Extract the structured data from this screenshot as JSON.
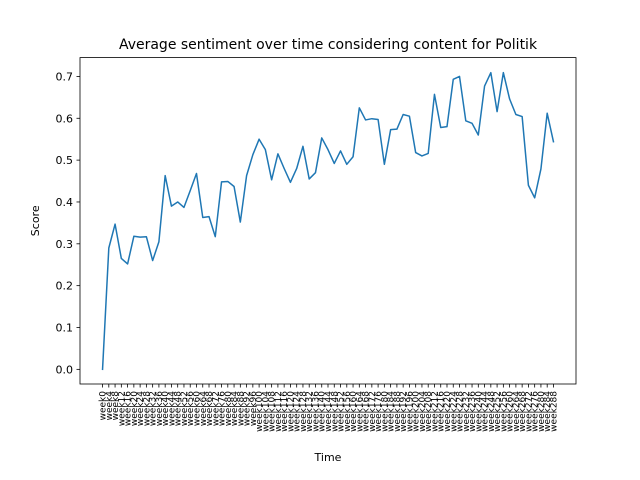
{
  "chart_data": {
    "type": "line",
    "title": "Average sentiment over time considering content for Politik",
    "xlabel": "Time",
    "ylabel": "Score",
    "ylim": [
      -0.035,
      0.745
    ],
    "yticks": [
      0.0,
      0.1,
      0.2,
      0.3,
      0.4,
      0.5,
      0.6,
      0.7
    ],
    "ytick_labels": [
      "0.0",
      "0.1",
      "0.2",
      "0.3",
      "0.4",
      "0.5",
      "0.6",
      "0.7"
    ],
    "color": "#1f77b4",
    "grid": false,
    "categories": [
      "week0",
      "week4",
      "week8",
      "week12",
      "week16",
      "week20",
      "week24",
      "week28",
      "week32",
      "week36",
      "week40",
      "week44",
      "week48",
      "week52",
      "week56",
      "week60",
      "week64",
      "week68",
      "week72",
      "week76",
      "week80",
      "week84",
      "week88",
      "week92",
      "week96",
      "week100",
      "week104",
      "week108",
      "week112",
      "week116",
      "week120",
      "week124",
      "week128",
      "week132",
      "week136",
      "week140",
      "week144",
      "week148",
      "week152",
      "week156",
      "week160",
      "week164",
      "week168",
      "week172",
      "week176",
      "week180",
      "week184",
      "week188",
      "week192",
      "week196",
      "week200",
      "week204",
      "week208",
      "week212",
      "week216",
      "week220",
      "week224",
      "week228",
      "week232",
      "week236",
      "week240",
      "week244",
      "week248",
      "week252",
      "week256",
      "week260",
      "week264",
      "week268",
      "week272",
      "week276",
      "week280",
      "week284",
      "week288"
    ],
    "values": [
      0.0,
      0.29,
      0.347,
      0.265,
      0.252,
      0.318,
      0.316,
      0.317,
      0.26,
      0.305,
      0.463,
      0.39,
      0.4,
      0.387,
      0.427,
      0.468,
      0.363,
      0.365,
      0.317,
      0.448,
      0.449,
      0.437,
      0.352,
      0.463,
      0.513,
      0.55,
      0.525,
      0.453,
      0.515,
      0.48,
      0.447,
      0.48,
      0.533,
      0.455,
      0.47,
      0.553,
      0.525,
      0.492,
      0.522,
      0.49,
      0.508,
      0.625,
      0.596,
      0.599,
      0.597,
      0.49,
      0.573,
      0.574,
      0.609,
      0.605,
      0.518,
      0.51,
      0.516,
      0.657,
      0.578,
      0.58,
      0.693,
      0.7,
      0.594,
      0.588,
      0.56,
      0.677,
      0.709,
      0.616,
      0.709,
      0.646,
      0.609,
      0.604,
      0.44,
      0.41,
      0.479,
      0.612,
      0.544
    ]
  }
}
